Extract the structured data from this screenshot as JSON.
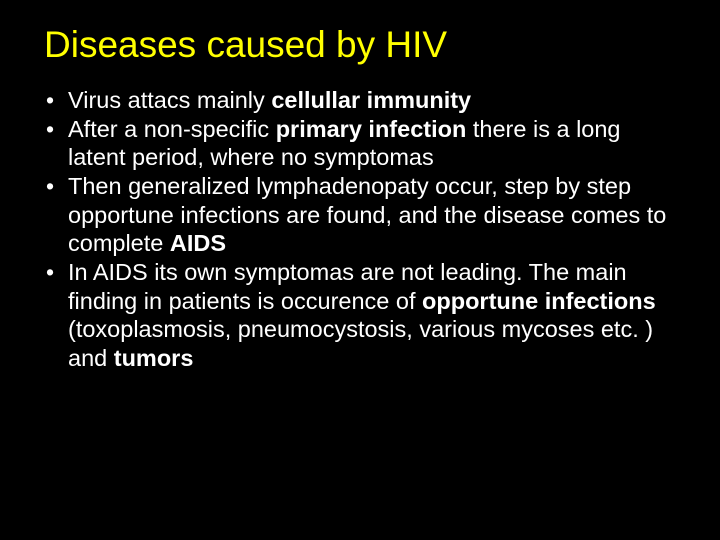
{
  "slide": {
    "background_color": "#000000",
    "title": {
      "text": "Diseases caused by HIV",
      "color": "#ffff00",
      "font_size_pt": 37,
      "font_family": "Verdana"
    },
    "body": {
      "text_color": "#ffffff",
      "font_size_pt": 23.5,
      "line_height": 1.22,
      "font_family": "Verdana",
      "bullet_char": "•",
      "bullets": [
        {
          "segments": [
            {
              "text": "Virus attacs mainly ",
              "bold": false
            },
            {
              "text": "cellullar immunity",
              "bold": true
            }
          ]
        },
        {
          "segments": [
            {
              "text": "After a non-specific ",
              "bold": false
            },
            {
              "text": "primary infection ",
              "bold": true
            },
            {
              "text": "there is a long latent period, where no symptomas",
              "bold": false
            }
          ]
        },
        {
          "segments": [
            {
              "text": "Then generalized lymphadenopaty occur, step by step opportune infections are found, and the disease comes to complete ",
              "bold": false
            },
            {
              "text": "AIDS",
              "bold": true
            }
          ]
        },
        {
          "segments": [
            {
              "text": "In AIDS its own symptomas are not leading. The main finding in patients is occurence of ",
              "bold": false
            },
            {
              "text": "opportune infections ",
              "bold": true
            },
            {
              "text": "(toxoplasmosis, pneumocystosis, various mycoses etc. ) and ",
              "bold": false
            },
            {
              "text": "tumors",
              "bold": true
            }
          ]
        }
      ]
    }
  }
}
